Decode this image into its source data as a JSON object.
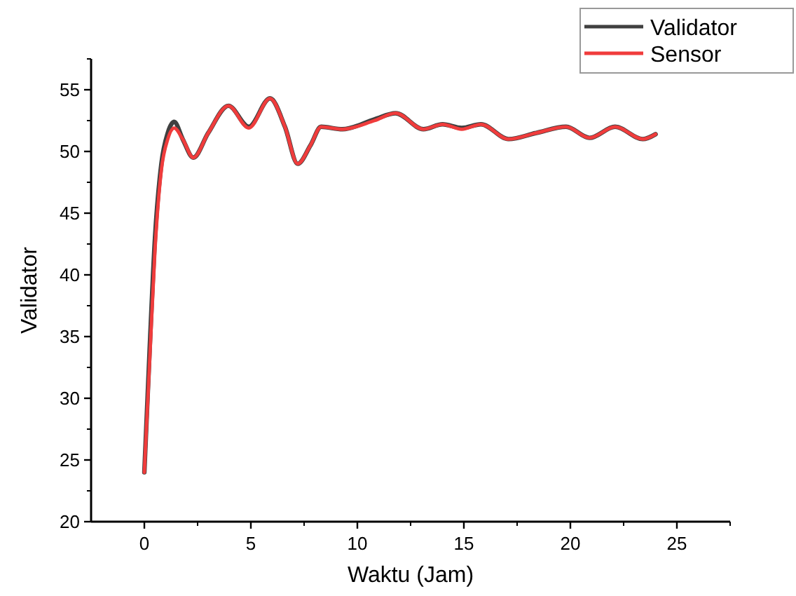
{
  "chart_data": {
    "type": "line",
    "xlabel": "Waktu (Jam)",
    "ylabel": "Validator",
    "xlim": [
      -2.5,
      27.5
    ],
    "xticks": [
      0,
      5,
      10,
      15,
      20,
      25
    ],
    "ylim": [
      20,
      57.5
    ],
    "yticks": [
      20,
      25,
      30,
      35,
      40,
      45,
      50,
      55
    ],
    "legend": "top right",
    "grid": false,
    "line_style": "solid",
    "marker": "none",
    "x": [
      0,
      0.25,
      0.5,
      0.8,
      1.1,
      1.4,
      1.8,
      2.3,
      3.0,
      3.95,
      4.9,
      5.9,
      6.6,
      7.2,
      7.8,
      8.3,
      9.3,
      10.8,
      11.8,
      13.1,
      14.0,
      14.9,
      15.8,
      17.1,
      18.4,
      19.8,
      20.9,
      22.1,
      23.4,
      24
    ],
    "series": [
      {
        "name": "Validator",
        "color": "#404040",
        "values": [
          24,
          34,
          43,
          49,
          51.5,
          52.4,
          51,
          49.5,
          51.5,
          53.7,
          52,
          54.3,
          52,
          49,
          50.5,
          52,
          51.8,
          52.6,
          53.1,
          51.8,
          52.2,
          51.9,
          52.2,
          51,
          51.5,
          52,
          51.1,
          52,
          51,
          51.4
        ]
      },
      {
        "name": "Sensor",
        "color": "#f03c3c",
        "values": [
          24,
          33,
          42,
          48.5,
          51,
          51.9,
          51,
          49.5,
          51.5,
          53.7,
          51.9,
          54.3,
          52,
          49,
          50.5,
          52,
          51.8,
          52.5,
          53.1,
          51.8,
          52.2,
          51.8,
          52.2,
          51,
          51.5,
          52,
          51.1,
          52,
          51,
          51.4
        ]
      }
    ]
  }
}
